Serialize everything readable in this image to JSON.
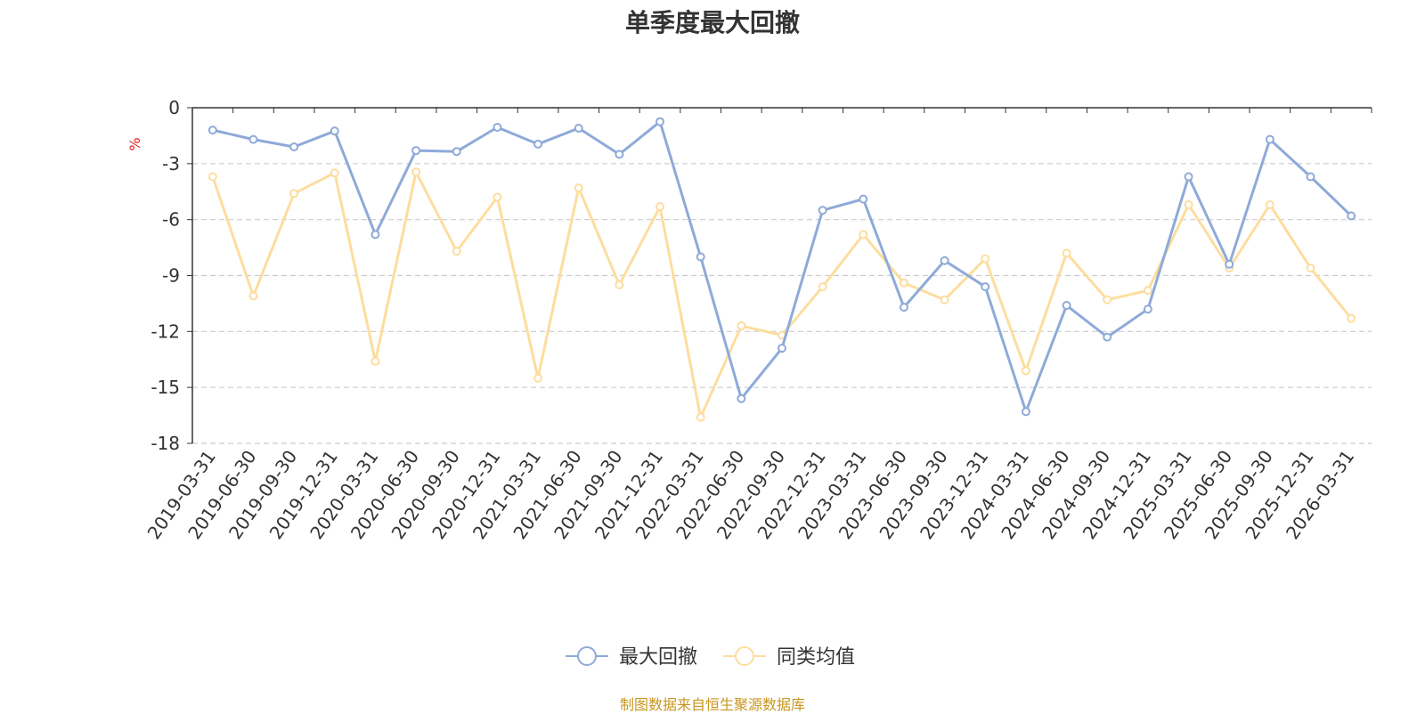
{
  "chart_data": {
    "type": "line",
    "title": "单季度最大回撤",
    "ylabel": "%",
    "xlabel": "",
    "ylim": [
      -18,
      0
    ],
    "yticks": [
      0,
      -3,
      -6,
      -9,
      -12,
      -15,
      -18
    ],
    "grid": true,
    "legend_position": "bottom-center",
    "categories": [
      "2019-03-31",
      "2019-06-30",
      "2019-09-30",
      "2019-12-31",
      "2020-03-31",
      "2020-06-30",
      "2020-09-30",
      "2020-12-31",
      "2021-03-31",
      "2021-06-30",
      "2021-09-30",
      "2021-12-31",
      "2022-03-31",
      "2022-06-30",
      "2022-09-30",
      "2022-12-31",
      "2023-03-31",
      "2023-06-30",
      "2023-09-30",
      "2023-12-31",
      "2024-03-31",
      "2024-06-30",
      "2024-09-30",
      "2024-12-31",
      "2025-03-31",
      "2025-06-30",
      "2025-09-30",
      "2025-12-31",
      "2026-03-31"
    ],
    "series": [
      {
        "name": "最大回撤",
        "color": "#8eaad8",
        "values": [
          -1.2,
          -1.7,
          -2.1,
          -1.25,
          -6.8,
          -2.3,
          -2.35,
          -1.05,
          -1.95,
          -1.1,
          -2.5,
          -0.75,
          -8.0,
          -15.6,
          -12.9,
          -5.5,
          -4.9,
          -10.7,
          -8.2,
          -9.6,
          -16.3,
          -10.6,
          -12.3,
          -10.8,
          -3.7,
          -8.4,
          -1.7,
          -3.7,
          -5.8
        ]
      },
      {
        "name": "同类均值",
        "color": "#fddd9f",
        "values": [
          -3.7,
          -10.1,
          -4.6,
          -3.5,
          -13.6,
          -3.45,
          -7.7,
          -4.8,
          -14.5,
          -4.3,
          -9.5,
          -5.3,
          -16.6,
          -11.7,
          -12.2,
          -9.6,
          -6.8,
          -9.4,
          -10.3,
          -8.1,
          -14.1,
          -7.8,
          -10.3,
          -9.8,
          -5.2,
          -8.6,
          -5.2,
          -8.6,
          -11.3
        ]
      }
    ]
  },
  "source_note": "制图数据来自恒生聚源数据库"
}
